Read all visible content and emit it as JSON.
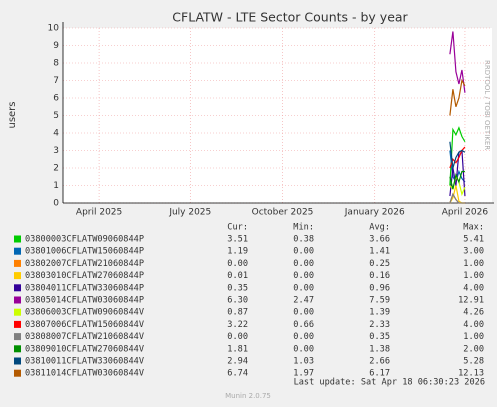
{
  "chart_data": {
    "type": "line",
    "title": "CFLATW - LTE Sector Counts - by year",
    "ylabel": "users",
    "side_label": "RRDTOOL / TOBI OETIKER",
    "x": [
      "2026-03-17",
      "2026-03-20",
      "2026-03-23",
      "2026-03-26",
      "2026-03-29",
      "2026-04-01"
    ],
    "xlim": [
      "2025-02-24",
      "2026-04-28"
    ],
    "xticks": [
      {
        "value": "2025-04-01",
        "label": "April 2025"
      },
      {
        "value": "2025-07-01",
        "label": "July 2025"
      },
      {
        "value": "2025-10-01",
        "label": "October 2025"
      },
      {
        "value": "2026-01-01",
        "label": "January 2026"
      },
      {
        "value": "2026-04-01",
        "label": "April 2026"
      }
    ],
    "ylim": [
      0,
      10
    ],
    "yticks": [
      0,
      1,
      2,
      3,
      4,
      5,
      6,
      7,
      8,
      9,
      10
    ],
    "grid": true,
    "legend_headers": [
      "Cur:",
      "Min:",
      "Avg:",
      "Max:"
    ],
    "series": [
      {
        "name": "03800003CFLATW09060844P",
        "color": "#00cc00",
        "values": [
          1.0,
          4.2,
          3.9,
          4.3,
          3.8,
          3.5
        ],
        "stats": [
          "3.51",
          "0.38",
          "3.66",
          "5.41"
        ]
      },
      {
        "name": "03801006CFLATW15060844P",
        "color": "#0066b3",
        "values": [
          3.0,
          1.5,
          1.2,
          1.8,
          1.4,
          1.2
        ],
        "stats": [
          "1.19",
          "0.00",
          "1.41",
          "3.00"
        ]
      },
      {
        "name": "03802007CFLATW21060844P",
        "color": "#ff8000",
        "values": [
          0,
          0.5,
          0.2,
          0,
          0,
          0
        ],
        "stats": [
          "0.00",
          "0.00",
          "0.25",
          "1.00"
        ]
      },
      {
        "name": "03803010CFLATW27060844P",
        "color": "#ffcc00",
        "values": [
          0,
          0.3,
          1.0,
          0.1,
          0,
          0
        ],
        "stats": [
          "0.01",
          "0.00",
          "0.16",
          "1.00"
        ]
      },
      {
        "name": "03804011CFLATW33060844P",
        "color": "#330099",
        "values": [
          0.4,
          2.0,
          1.0,
          2.9,
          3.0,
          0.4
        ],
        "stats": [
          "0.35",
          "0.00",
          "0.96",
          "4.00"
        ]
      },
      {
        "name": "03805014CFLATW03060844P",
        "color": "#990099",
        "values": [
          8.5,
          9.8,
          7.5,
          6.8,
          7.6,
          6.3
        ],
        "stats": [
          "6.30",
          "2.47",
          "7.59",
          "12.91"
        ]
      },
      {
        "name": "03806003CFLATW09060844V",
        "color": "#ccff00",
        "values": [
          1.0,
          0.8,
          1.5,
          1.2,
          0.5,
          0.9
        ],
        "stats": [
          "0.87",
          "0.00",
          "1.39",
          "4.26"
        ]
      },
      {
        "name": "03807006CFLATW15060844V",
        "color": "#ff0000",
        "values": [
          2.0,
          2.5,
          2.3,
          2.6,
          3.0,
          3.2
        ],
        "stats": [
          "3.22",
          "0.66",
          "2.33",
          "4.00"
        ]
      },
      {
        "name": "03808007CFLATW21060844V",
        "color": "#808080",
        "values": [
          0,
          0.5,
          0.2,
          0,
          0,
          0
        ],
        "stats": [
          "0.00",
          "0.00",
          "0.35",
          "1.00"
        ]
      },
      {
        "name": "03809010CFLATW27060844V",
        "color": "#008f00",
        "values": [
          1.5,
          0.8,
          1.6,
          1.2,
          1.8,
          1.8
        ],
        "stats": [
          "1.81",
          "0.00",
          "1.38",
          "2.00"
        ]
      },
      {
        "name": "03810011CFLATW33060844V",
        "color": "#00487d",
        "values": [
          3.5,
          2.0,
          2.6,
          2.9,
          3.0,
          2.9
        ],
        "stats": [
          "2.94",
          "1.03",
          "2.66",
          "5.28"
        ]
      },
      {
        "name": "03811014CFLATW03060844V",
        "color": "#b35a00",
        "values": [
          5.0,
          6.5,
          5.5,
          6.0,
          7.0,
          6.7
        ],
        "stats": [
          "6.74",
          "1.97",
          "6.17",
          "12.13"
        ]
      }
    ],
    "last_update": "Last update: Sat Apr 18 06:30:23 2026",
    "footer": "Munin 2.0.75"
  }
}
